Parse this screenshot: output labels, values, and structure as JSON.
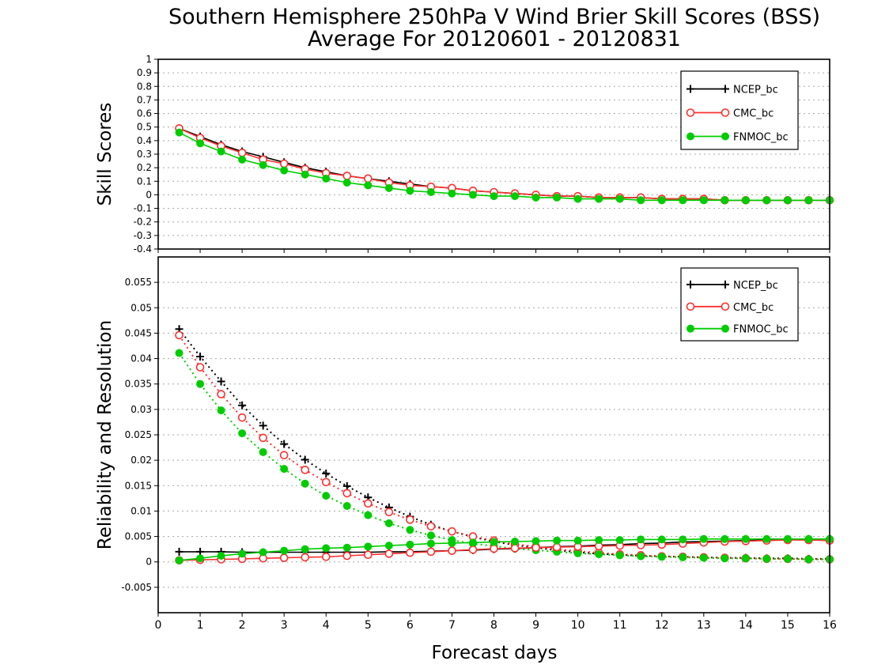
{
  "title": "Southern Hemisphere 250hPa V Wind Brier Skill Scores (BSS)",
  "subtitle": "Average For 20120601 - 20120831",
  "xlabel": "Forecast days",
  "colors": {
    "NCEP_bc": "#000000",
    "CMC_bc": "#ff3030",
    "FNMOC_bc": "#00cc00"
  },
  "chart_data": [
    {
      "type": "line",
      "ylabel": "Skill Scores",
      "xlim": [
        0,
        16
      ],
      "ylim": [
        -0.4,
        1
      ],
      "x_ticks": [
        "0",
        "1",
        "2",
        "3",
        "4",
        "5",
        "6",
        "7",
        "8",
        "9",
        "10",
        "11",
        "12",
        "13",
        "14",
        "15",
        "16"
      ],
      "y_ticks": [
        "-0.4",
        "-0.3",
        "-0.2",
        "-0.1",
        "0",
        "0.1",
        "0.2",
        "0.3",
        "0.4",
        "0.5",
        "0.6",
        "0.7",
        "0.8",
        "0.9",
        "1"
      ],
      "x": [
        0.5,
        1,
        1.5,
        2,
        2.5,
        3,
        3.5,
        4,
        4.5,
        5,
        5.5,
        6,
        6.5,
        7,
        7.5,
        8,
        8.5,
        9,
        9.5,
        10,
        10.5,
        11,
        11.5,
        12,
        12.5,
        13,
        13.5,
        14,
        14.5,
        15,
        15.5,
        16
      ],
      "legend": [
        "NCEP_bc",
        "CMC_bc",
        "FNMOC_bc"
      ],
      "legend_position": "top-right",
      "series": [
        {
          "name": "NCEP_bc",
          "marker": "plus",
          "style": "solid",
          "values": [
            0.49,
            0.43,
            0.37,
            0.32,
            0.28,
            0.24,
            0.2,
            0.17,
            0.14,
            0.12,
            0.1,
            0.08,
            0.06,
            0.05,
            0.03,
            0.02,
            0.01,
            0.0,
            -0.01,
            -0.01,
            -0.02,
            -0.02,
            -0.02,
            -0.03,
            -0.03,
            -0.03,
            -0.04,
            -0.04,
            -0.04,
            -0.04,
            -0.04,
            -0.04
          ]
        },
        {
          "name": "CMC_bc",
          "marker": "open-circle",
          "style": "solid",
          "values": [
            0.49,
            0.42,
            0.36,
            0.31,
            0.26,
            0.23,
            0.19,
            0.16,
            0.14,
            0.12,
            0.09,
            0.07,
            0.06,
            0.05,
            0.03,
            0.02,
            0.01,
            0.0,
            -0.01,
            -0.01,
            -0.02,
            -0.02,
            -0.02,
            -0.03,
            -0.03,
            -0.03,
            -0.04,
            -0.04,
            -0.04,
            -0.04,
            -0.04,
            -0.04
          ]
        },
        {
          "name": "FNMOC_bc",
          "marker": "filled-circle",
          "style": "solid",
          "values": [
            0.46,
            0.38,
            0.32,
            0.26,
            0.22,
            0.18,
            0.15,
            0.12,
            0.09,
            0.07,
            0.05,
            0.03,
            0.02,
            0.01,
            0.0,
            -0.01,
            -0.01,
            -0.02,
            -0.02,
            -0.03,
            -0.03,
            -0.03,
            -0.04,
            -0.04,
            -0.04,
            -0.04,
            -0.04,
            -0.04,
            -0.04,
            -0.04,
            -0.04,
            -0.04
          ]
        }
      ]
    },
    {
      "type": "line",
      "ylabel": "Reliability and Resolution",
      "xlim": [
        0,
        16
      ],
      "ylim": [
        -0.01,
        0.06
      ],
      "x_ticks": [
        "0",
        "1",
        "2",
        "3",
        "4",
        "5",
        "6",
        "7",
        "8",
        "9",
        "10",
        "11",
        "12",
        "13",
        "14",
        "15",
        "16"
      ],
      "y_ticks": [
        "-0.005",
        "0",
        "0.005",
        "0.01",
        "0.015",
        "0.02",
        "0.025",
        "0.03",
        "0.035",
        "0.04",
        "0.045",
        "0.05",
        "0.055"
      ],
      "x": [
        0.5,
        1,
        1.5,
        2,
        2.5,
        3,
        3.5,
        4,
        4.5,
        5,
        5.5,
        6,
        6.5,
        7,
        7.5,
        8,
        8.5,
        9,
        9.5,
        10,
        10.5,
        11,
        11.5,
        12,
        12.5,
        13,
        13.5,
        14,
        14.5,
        15,
        15.5,
        16
      ],
      "legend": [
        "NCEP_bc",
        "CMC_bc",
        "FNMOC_bc"
      ],
      "legend_position": "top-right",
      "series": [
        {
          "name": "NCEP_bc",
          "marker": "plus",
          "style": "dotted",
          "values": [
            0.0458,
            0.0404,
            0.0355,
            0.0308,
            0.0268,
            0.0232,
            0.0201,
            0.0174,
            0.0149,
            0.0127,
            0.0107,
            0.0089,
            0.0073,
            0.006,
            0.0049,
            0.004,
            0.0033,
            0.0028,
            0.0023,
            0.0019,
            0.0016,
            0.0014,
            0.0012,
            0.0011,
            0.001,
            0.0009,
            0.0008,
            0.0008,
            0.0007,
            0.0007,
            0.0006,
            0.0006
          ]
        },
        {
          "name": "CMC_bc",
          "marker": "open-circle",
          "style": "dotted",
          "values": [
            0.0446,
            0.0383,
            0.033,
            0.0284,
            0.0244,
            0.021,
            0.0181,
            0.0157,
            0.0135,
            0.0115,
            0.0098,
            0.0083,
            0.007,
            0.006,
            0.005,
            0.0042,
            0.0035,
            0.003,
            0.0025,
            0.0021,
            0.0018,
            0.0015,
            0.0013,
            0.0011,
            0.001,
            0.0009,
            0.0008,
            0.0007,
            0.0006,
            0.0006,
            0.0005,
            0.0005
          ]
        },
        {
          "name": "FNMOC_bc",
          "marker": "filled-circle",
          "style": "dotted",
          "values": [
            0.0411,
            0.035,
            0.0298,
            0.0253,
            0.0216,
            0.0183,
            0.0154,
            0.013,
            0.011,
            0.0092,
            0.0076,
            0.0063,
            0.0052,
            0.0043,
            0.0036,
            0.0031,
            0.0026,
            0.0023,
            0.002,
            0.0017,
            0.0015,
            0.0013,
            0.0011,
            0.001,
            0.0009,
            0.0008,
            0.0007,
            0.0007,
            0.0006,
            0.0006,
            0.0005,
            0.0005
          ]
        },
        {
          "name": "NCEP_bc",
          "marker": "plus",
          "style": "solid",
          "values": [
            0.002,
            0.002,
            0.002,
            0.0019,
            0.0019,
            0.0019,
            0.0019,
            0.0019,
            0.0019,
            0.0019,
            0.002,
            0.002,
            0.0021,
            0.0022,
            0.0023,
            0.0025,
            0.0026,
            0.0028,
            0.003,
            0.0031,
            0.0033,
            0.0034,
            0.0036,
            0.0037,
            0.0039,
            0.004,
            0.0041,
            0.0042,
            0.0043,
            0.0044,
            0.0045,
            0.0045
          ]
        },
        {
          "name": "CMC_bc",
          "marker": "open-circle",
          "style": "solid",
          "values": [
            0.0003,
            0.0004,
            0.0005,
            0.0006,
            0.0007,
            0.0008,
            0.0009,
            0.001,
            0.0012,
            0.0014,
            0.0016,
            0.0018,
            0.002,
            0.0022,
            0.0024,
            0.0026,
            0.0027,
            0.0028,
            0.0029,
            0.003,
            0.0031,
            0.0032,
            0.0033,
            0.0034,
            0.0036,
            0.0038,
            0.004,
            0.0041,
            0.0042,
            0.0043,
            0.0043,
            0.0042
          ]
        },
        {
          "name": "FNMOC_bc",
          "marker": "filled-circle",
          "style": "solid",
          "values": [
            0.0003,
            0.0007,
            0.0012,
            0.0016,
            0.0019,
            0.0022,
            0.0025,
            0.0027,
            0.0028,
            0.003,
            0.0032,
            0.0034,
            0.0036,
            0.0037,
            0.0038,
            0.0039,
            0.004,
            0.0041,
            0.0042,
            0.0042,
            0.0043,
            0.0043,
            0.0044,
            0.0044,
            0.0044,
            0.0045,
            0.0045,
            0.0045,
            0.0045,
            0.0045,
            0.0045,
            0.0045
          ]
        }
      ]
    }
  ]
}
